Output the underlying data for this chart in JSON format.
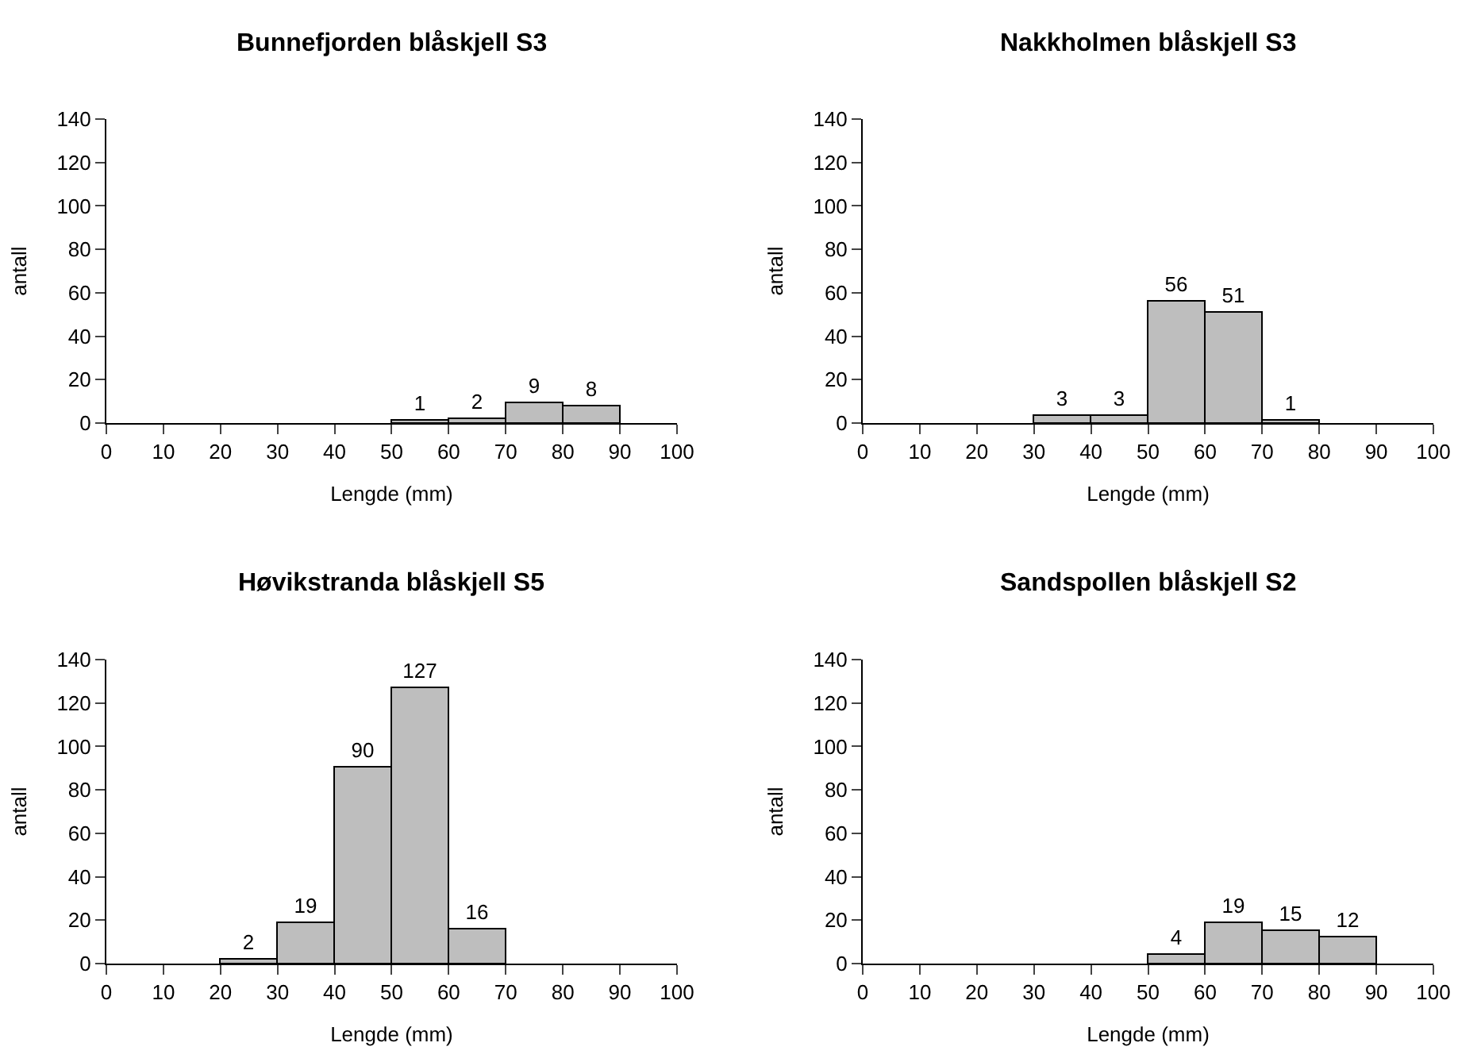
{
  "chart_data": [
    {
      "type": "histogram",
      "title": "Bunnefjorden blåskjell S3",
      "xlabel": "Lengde (mm)",
      "ylabel": "antall",
      "bins": [
        50,
        60,
        70,
        80,
        90
      ],
      "values": [
        1,
        2,
        9,
        8
      ],
      "color": "#bebebe",
      "xlim": [
        0,
        100
      ],
      "xticks": [
        0,
        10,
        20,
        30,
        40,
        50,
        60,
        70,
        80,
        90,
        100
      ],
      "ylim": [
        0,
        140
      ],
      "yticks": [
        0,
        20,
        40,
        60,
        80,
        100,
        120,
        140
      ],
      "data_labels": true
    },
    {
      "type": "histogram",
      "title": "Nakkholmen blåskjell S3",
      "xlabel": "Lengde (mm)",
      "ylabel": "antall",
      "bins": [
        30,
        40,
        50,
        60,
        70,
        80
      ],
      "values": [
        3,
        3,
        56,
        51,
        1
      ],
      "color": "#bebebe",
      "xlim": [
        0,
        100
      ],
      "xticks": [
        0,
        10,
        20,
        30,
        40,
        50,
        60,
        70,
        80,
        90,
        100
      ],
      "ylim": [
        0,
        140
      ],
      "yticks": [
        0,
        20,
        40,
        60,
        80,
        100,
        120,
        140
      ],
      "data_labels": true
    },
    {
      "type": "histogram",
      "title": "Høvikstranda blåskjell S5",
      "xlabel": "Lengde (mm)",
      "ylabel": "antall",
      "bins": [
        20,
        30,
        40,
        50,
        60,
        70
      ],
      "values": [
        2,
        19,
        90,
        127,
        16
      ],
      "color": "#bebebe",
      "xlim": [
        0,
        100
      ],
      "xticks": [
        0,
        10,
        20,
        30,
        40,
        50,
        60,
        70,
        80,
        90,
        100
      ],
      "ylim": [
        0,
        140
      ],
      "yticks": [
        0,
        20,
        40,
        60,
        80,
        100,
        120,
        140
      ],
      "data_labels": true
    },
    {
      "type": "histogram",
      "title": "Sandspollen blåskjell S2",
      "xlabel": "Lengde (mm)",
      "ylabel": "antall",
      "bins": [
        50,
        60,
        70,
        80,
        90
      ],
      "values": [
        4,
        19,
        15,
        12
      ],
      "color": "#bebebe",
      "xlim": [
        0,
        100
      ],
      "xticks": [
        0,
        10,
        20,
        30,
        40,
        50,
        60,
        70,
        80,
        90,
        100
      ],
      "ylim": [
        0,
        140
      ],
      "yticks": [
        0,
        20,
        40,
        60,
        80,
        100,
        120,
        140
      ],
      "data_labels": true
    }
  ]
}
